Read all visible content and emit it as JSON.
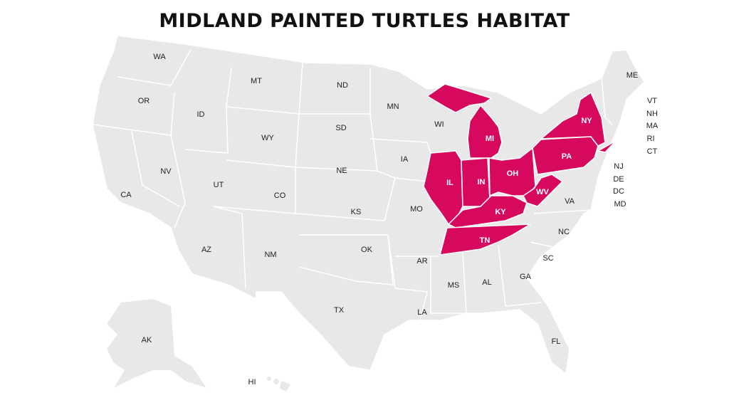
{
  "title": "MIDLAND PAINTED TURTLES HABITAT",
  "colors": {
    "habitat": "#D6095E",
    "other": "#E8E8E8",
    "border": "#FFFFFF"
  },
  "habitat_states": [
    "MI",
    "IL",
    "IN",
    "OH",
    "KY",
    "TN",
    "WV",
    "PA",
    "NY"
  ],
  "labels": [
    {
      "code": "WA",
      "highlighted": false
    },
    {
      "code": "OR",
      "highlighted": false
    },
    {
      "code": "ID",
      "highlighted": false
    },
    {
      "code": "MT",
      "highlighted": false
    },
    {
      "code": "ND",
      "highlighted": false
    },
    {
      "code": "MN",
      "highlighted": false
    },
    {
      "code": "WI",
      "highlighted": false
    },
    {
      "code": "MI",
      "highlighted": true
    },
    {
      "code": "NY",
      "highlighted": true
    },
    {
      "code": "ME",
      "highlighted": false
    },
    {
      "code": "VT",
      "highlighted": false
    },
    {
      "code": "NH",
      "highlighted": false
    },
    {
      "code": "MA",
      "highlighted": false
    },
    {
      "code": "RI",
      "highlighted": false
    },
    {
      "code": "CT",
      "highlighted": false
    },
    {
      "code": "NJ",
      "highlighted": false
    },
    {
      "code": "DE",
      "highlighted": false
    },
    {
      "code": "DC",
      "highlighted": false
    },
    {
      "code": "MD",
      "highlighted": false
    },
    {
      "code": "SD",
      "highlighted": false
    },
    {
      "code": "WY",
      "highlighted": false
    },
    {
      "code": "NV",
      "highlighted": false
    },
    {
      "code": "UT",
      "highlighted": false
    },
    {
      "code": "CO",
      "highlighted": false
    },
    {
      "code": "NE",
      "highlighted": false
    },
    {
      "code": "IA",
      "highlighted": false
    },
    {
      "code": "IL",
      "highlighted": true
    },
    {
      "code": "IN",
      "highlighted": true
    },
    {
      "code": "OH",
      "highlighted": true
    },
    {
      "code": "PA",
      "highlighted": true
    },
    {
      "code": "WV",
      "highlighted": true
    },
    {
      "code": "VA",
      "highlighted": false
    },
    {
      "code": "KY",
      "highlighted": true
    },
    {
      "code": "MO",
      "highlighted": false
    },
    {
      "code": "KS",
      "highlighted": false
    },
    {
      "code": "CA",
      "highlighted": false
    },
    {
      "code": "AZ",
      "highlighted": false
    },
    {
      "code": "NM",
      "highlighted": false
    },
    {
      "code": "OK",
      "highlighted": false
    },
    {
      "code": "AR",
      "highlighted": false
    },
    {
      "code": "TN",
      "highlighted": true
    },
    {
      "code": "NC",
      "highlighted": false
    },
    {
      "code": "SC",
      "highlighted": false
    },
    {
      "code": "GA",
      "highlighted": false
    },
    {
      "code": "AL",
      "highlighted": false
    },
    {
      "code": "MS",
      "highlighted": false
    },
    {
      "code": "LA",
      "highlighted": false
    },
    {
      "code": "TX",
      "highlighted": false
    },
    {
      "code": "FL",
      "highlighted": false
    },
    {
      "code": "AK",
      "highlighted": false
    },
    {
      "code": "HI",
      "highlighted": false
    }
  ]
}
